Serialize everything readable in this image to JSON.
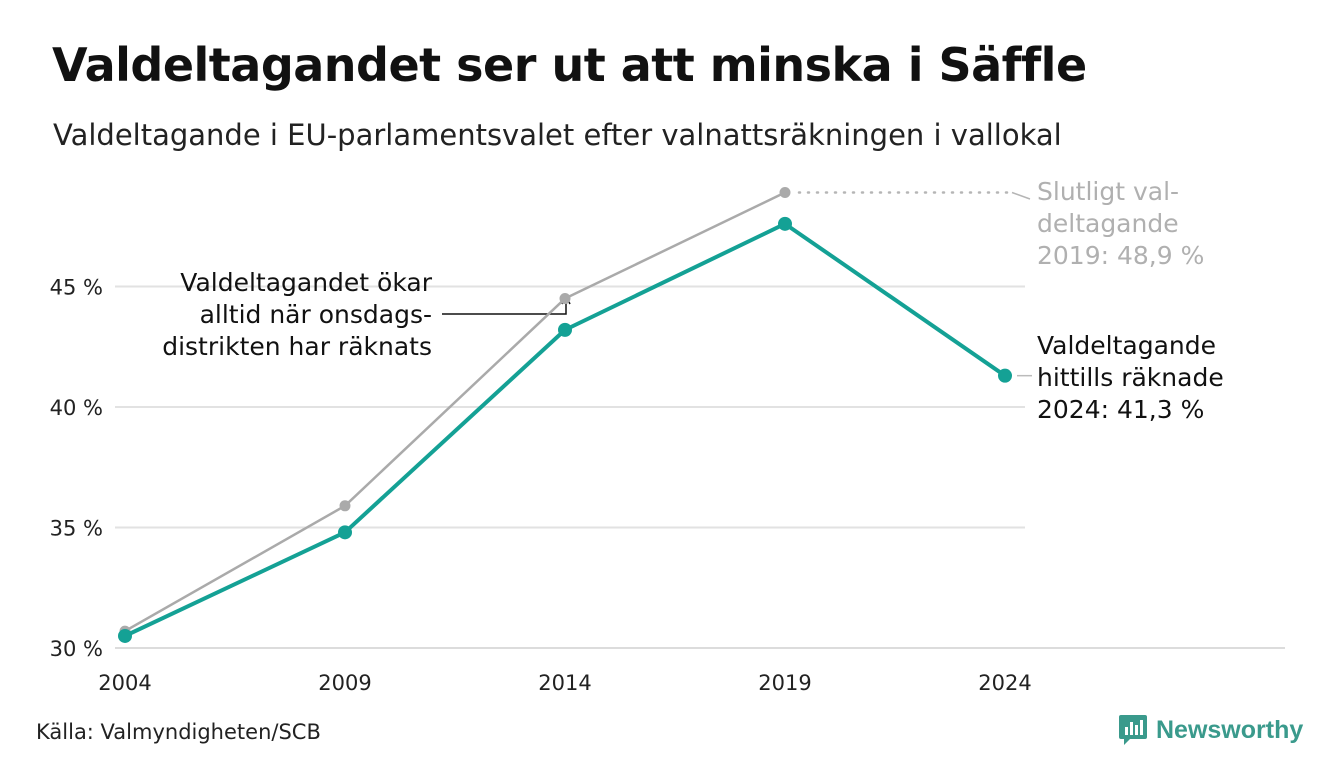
{
  "title": "Valdeltagandet ser ut att minska i Säffle",
  "subtitle": "Valdeltagande i EU-parlamentsvalet efter valnattsräkningen i vallokal",
  "source": "Källa: Valmyndigheten/SCB",
  "brand": {
    "name": "Newsworthy",
    "icon": "bar-chart-logo-icon",
    "color": "#3a9a8c"
  },
  "chart_data": {
    "type": "line",
    "x": [
      "2004",
      "2009",
      "2014",
      "2019",
      "2024"
    ],
    "yticks": [
      30,
      35,
      40,
      45
    ],
    "ytick_labels": [
      "30 %",
      "35 %",
      "40 %",
      "45 %"
    ],
    "ylim": [
      30,
      49.5
    ],
    "grid": true,
    "series": [
      {
        "values": [
          30.7,
          35.9,
          44.5,
          48.9,
          null
        ],
        "color": "#aaaaaa"
      },
      {
        "values": [
          30.5,
          34.8,
          43.2,
          47.6,
          41.3
        ],
        "color": "#14a195"
      }
    ],
    "annotations": {
      "final_2019": [
        "Slutligt val-",
        "deltagande",
        "2019: 48,9 %"
      ],
      "current_2024": [
        "Valdeltagande",
        "hittills räknade",
        "2024: 41,3 %"
      ],
      "onsdag_note": [
        "Valdeltagandet ökar",
        "alltid när onsdags-",
        "distrikten har räknats"
      ]
    }
  }
}
